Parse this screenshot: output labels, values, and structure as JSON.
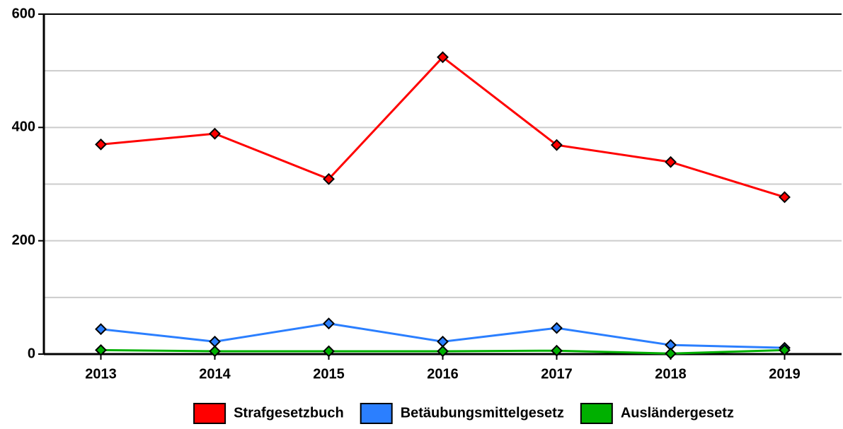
{
  "chart_data": {
    "type": "line",
    "categories": [
      "2013",
      "2014",
      "2015",
      "2016",
      "2017",
      "2018",
      "2019"
    ],
    "series": [
      {
        "name": "Strafgesetzbuch",
        "color": "#ff0000",
        "values": [
          370,
          389,
          309,
          524,
          369,
          339,
          277
        ]
      },
      {
        "name": "Betäubungsmittelgesetz",
        "color": "#2b7fff",
        "values": [
          44,
          22,
          54,
          22,
          46,
          16,
          11
        ]
      },
      {
        "name": "Ausländergesetz",
        "color": "#00b000",
        "values": [
          7,
          5,
          5,
          5,
          6,
          1,
          7
        ]
      }
    ],
    "ylim": [
      0,
      600
    ],
    "yticks": [
      0,
      200,
      400,
      600
    ],
    "minor_yticks": [
      100,
      300,
      500
    ],
    "grid": true,
    "legend": "bottom"
  }
}
